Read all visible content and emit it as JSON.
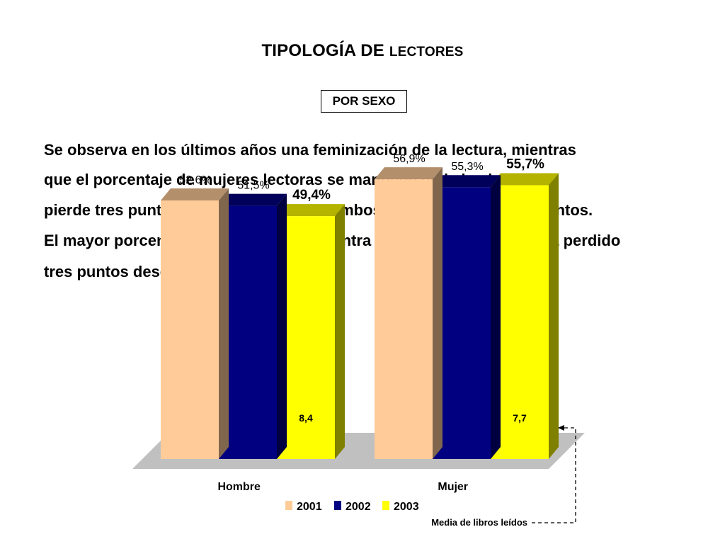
{
  "slide": {
    "title_main": "TIPOLOGÍA DE ",
    "title_small": "LECTORES",
    "subtitle": "POR SEXO",
    "paragraph_lines": [
      "Se observa en los últimos años una feminización de la lectura, mientras",
      "que el porcentaje de mujeres lectoras se mantiene el de los hombres",
      "pierde tres puntos. La diferencia entre ambos colectivos es de 6,3 puntos.",
      "El mayor porcentaje de lectura se encuentra en los jóvenes si bien ha perdido",
      "tres puntos desde 2001."
    ]
  },
  "chart_data": {
    "type": "bar",
    "categories": [
      "Hombre",
      "Mujer"
    ],
    "series": [
      {
        "name": "2001",
        "values": [
          52.6,
          56.9
        ],
        "labels": [
          "52,6%",
          "56,9%"
        ],
        "color": "#FFCC99"
      },
      {
        "name": "2002",
        "values": [
          51.5,
          55.3
        ],
        "labels": [
          "51,5%",
          "55,3%"
        ],
        "color": "#000080"
      },
      {
        "name": "2003",
        "values": [
          49.4,
          55.7
        ],
        "labels": [
          "49,4%",
          "55,7%"
        ],
        "color": "#FFFF00"
      }
    ],
    "books_read": {
      "values": [
        8.4,
        7.7
      ],
      "labels": [
        "8,4",
        "7,7"
      ]
    },
    "annotation": "Media de libros leídos",
    "legend_position": "bottom",
    "floor_color": "#C0C0C0",
    "grid": false,
    "style": "3d"
  }
}
